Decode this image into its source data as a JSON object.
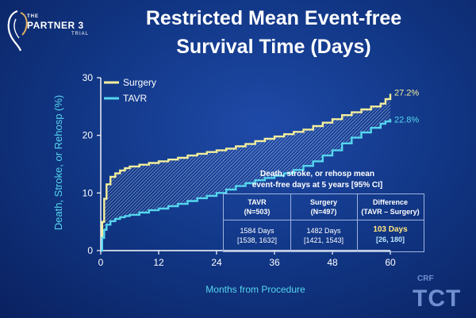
{
  "logo": {
    "pre": "THE",
    "name": "PARTNER 3",
    "sub": "TRIAL"
  },
  "title_line1": "Restricted Mean Event-free",
  "title_line2": "Survival Time (Days)",
  "colors": {
    "surgery": "#f4ef9c",
    "tavr": "#55d6ee",
    "hatch": "#c9d8ee",
    "axis": "#ffffff",
    "background": "#123888"
  },
  "chart_data": {
    "type": "line",
    "xlabel": "Months from Procedure",
    "ylabel": "Death, Stroke, or Rehosp (%)",
    "xlim": [
      0,
      60
    ],
    "ylim": [
      0,
      30
    ],
    "xticks": [
      0,
      12,
      24,
      36,
      48,
      60
    ],
    "yticks": [
      0,
      10,
      20,
      30
    ],
    "legend_position": "top-left",
    "series": [
      {
        "name": "Surgery",
        "color": "#f4ef9c",
        "end_label": "27.2%",
        "x": [
          0,
          0.3,
          0.7,
          1.2,
          2,
          3,
          4,
          5,
          6,
          8,
          10,
          12,
          14,
          16,
          18,
          20,
          22,
          24,
          26,
          28,
          30,
          32,
          34,
          36,
          38,
          40,
          42,
          44,
          46,
          48,
          50,
          52,
          54,
          56,
          58,
          59,
          60
        ],
        "y": [
          0,
          5,
          9,
          11.5,
          12.8,
          13.4,
          13.9,
          14.3,
          14.6,
          14.9,
          15.2,
          15.5,
          15.8,
          16.1,
          16.5,
          16.8,
          17.1,
          17.4,
          17.7,
          18.1,
          18.5,
          19.0,
          19.4,
          19.8,
          20.2,
          20.6,
          21.0,
          21.6,
          22.2,
          22.8,
          23.5,
          24.0,
          24.5,
          25.0,
          25.5,
          26.3,
          27.2
        ]
      },
      {
        "name": "TAVR",
        "color": "#55d6ee",
        "end_label": "22.8%",
        "x": [
          0,
          0.3,
          0.7,
          1.2,
          2,
          3,
          4,
          5,
          6,
          8,
          10,
          12,
          14,
          16,
          18,
          20,
          22,
          24,
          26,
          28,
          30,
          32,
          34,
          36,
          38,
          40,
          42,
          44,
          46,
          48,
          50,
          52,
          54,
          56,
          58,
          59,
          60
        ],
        "y": [
          0,
          2.2,
          3.6,
          4.5,
          5.1,
          5.5,
          5.8,
          6.0,
          6.2,
          6.6,
          7.0,
          7.3,
          7.7,
          8.1,
          8.6,
          9.1,
          9.5,
          10.0,
          10.6,
          11.2,
          11.7,
          12.2,
          12.6,
          13.0,
          13.4,
          14.0,
          14.7,
          15.5,
          16.5,
          17.4,
          18.6,
          19.6,
          20.5,
          21.3,
          22.0,
          22.4,
          22.8
        ]
      }
    ]
  },
  "annotation_line1": "Death, stroke, or rehosp mean",
  "annotation_line2": "event-free days at 5 years [95% CI]",
  "table": {
    "headers": [
      {
        "label": "TAVR",
        "sub": "(N=503)"
      },
      {
        "label": "Surgery",
        "sub": "(N=497)"
      },
      {
        "label": "Difference",
        "sub": "(TAVR – Surgery)"
      }
    ],
    "rows": [
      {
        "value": "1584 Days",
        "ci": "[1538, 1632]"
      },
      {
        "value": "1482 Days",
        "ci": "[1421, 1543]"
      },
      {
        "value": "103 Days",
        "ci": "[26, 180]"
      }
    ]
  },
  "footer_logo": {
    "crf": "CRF",
    "tct": "TCT"
  }
}
